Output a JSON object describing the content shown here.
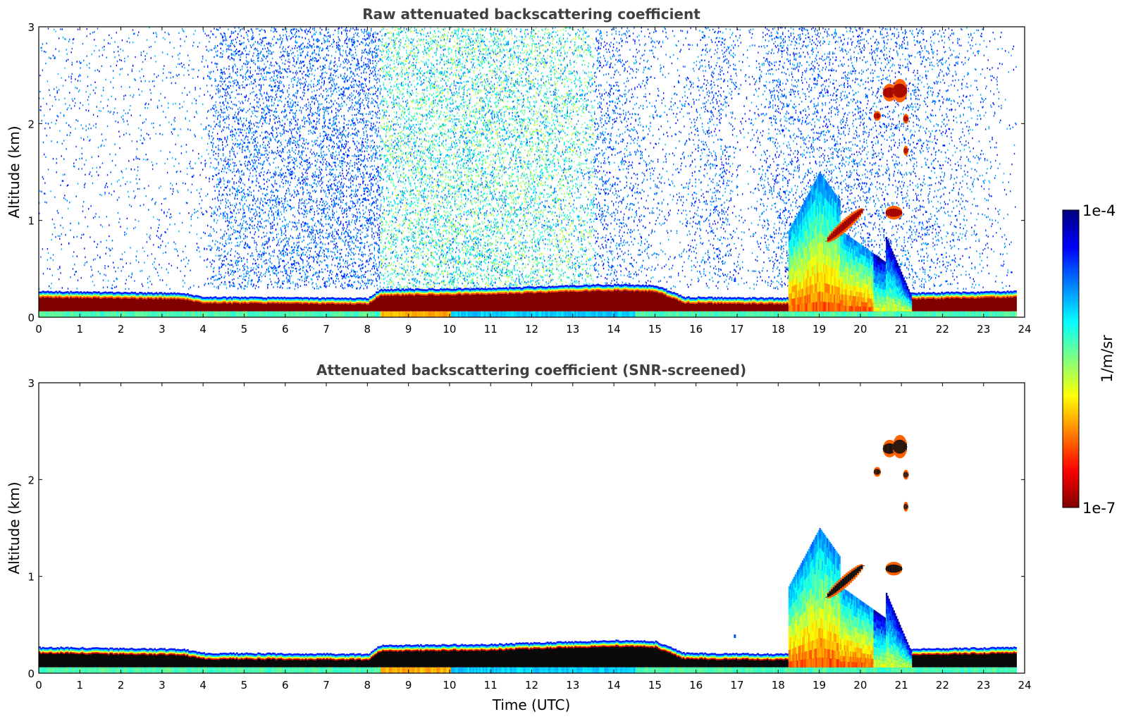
{
  "chart_data": [
    {
      "type": "heatmap",
      "title": "Raw attenuated backscattering coefficient",
      "xlabel": "",
      "ylabel": "Altitude (km)",
      "xlim": [
        0,
        24
      ],
      "ylim": [
        0,
        3
      ],
      "xticks": [
        "0",
        "1",
        "2",
        "3",
        "4",
        "5",
        "6",
        "7",
        "8",
        "9",
        "10",
        "11",
        "12",
        "13",
        "14",
        "15",
        "16",
        "17",
        "18",
        "19",
        "20",
        "21",
        "22",
        "23",
        "24"
      ],
      "yticks": [
        "0",
        "1",
        "2",
        "3"
      ],
      "screened": false,
      "features": {
        "boundary_layer_top_km": [
          [
            0,
            0.27
          ],
          [
            3.5,
            0.25
          ],
          [
            4,
            0.21
          ],
          [
            8,
            0.2
          ],
          [
            8.3,
            0.29
          ],
          [
            11,
            0.3
          ],
          [
            12.3,
            0.32
          ],
          [
            14,
            0.34
          ],
          [
            15,
            0.33
          ],
          [
            15.7,
            0.21
          ],
          [
            18,
            0.2
          ],
          [
            21,
            0.25
          ],
          [
            23.8,
            0.27
          ]
        ],
        "noise_density": [
          [
            0,
            0.08
          ],
          [
            4,
            0.1
          ],
          [
            4.4,
            0.45
          ],
          [
            8.3,
            0.6
          ],
          [
            10.5,
            0.75
          ],
          [
            12.5,
            0.6
          ],
          [
            15.4,
            0.1
          ],
          [
            16.6,
            0.35
          ],
          [
            17.2,
            0.05
          ],
          [
            18,
            0.4
          ],
          [
            21.5,
            0.3
          ],
          [
            23.8,
            0.03
          ]
        ],
        "clouds": [
          {
            "t": 19.6,
            "z": 0.95,
            "desc": "elevated cloud layer"
          },
          {
            "t": 20.8,
            "z": 1.08,
            "desc": "cloud"
          },
          {
            "t": 20.9,
            "z": 2.35,
            "desc": "upper cloud"
          },
          {
            "t": 18.9,
            "z": 0.8,
            "desc": "convective plume"
          }
        ]
      }
    },
    {
      "type": "heatmap",
      "title": "Attenuated backscattering coefficient (SNR-screened)",
      "xlabel": "Time (UTC)",
      "ylabel": "Altitude (km)",
      "xlim": [
        0,
        24
      ],
      "ylim": [
        0,
        3
      ],
      "xticks": [
        "0",
        "1",
        "2",
        "3",
        "4",
        "5",
        "6",
        "7",
        "8",
        "9",
        "10",
        "11",
        "12",
        "13",
        "14",
        "15",
        "16",
        "17",
        "18",
        "19",
        "20",
        "21",
        "22",
        "23",
        "24"
      ],
      "yticks": [
        "0",
        "1",
        "2",
        "3"
      ],
      "screened": true
    }
  ],
  "colorbar": {
    "max_label": "1e-4",
    "min_label": "1e-7",
    "unit_label": "1/m/sr",
    "colormap": "jet",
    "stops": [
      "#00007f",
      "#0000ff",
      "#007fff",
      "#00ffff",
      "#7fff7f",
      "#ffff00",
      "#ff7f00",
      "#ff0000",
      "#7f0000"
    ]
  }
}
